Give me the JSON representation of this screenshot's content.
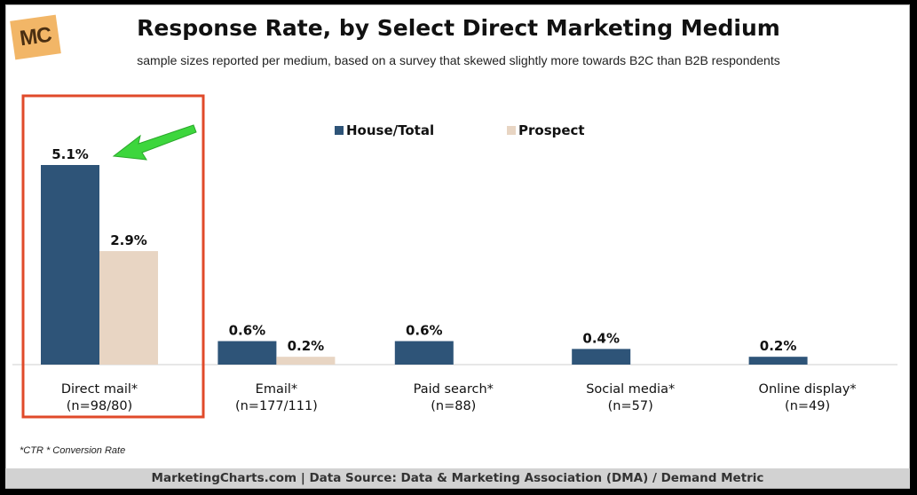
{
  "logo_text": "MC",
  "chart_data": {
    "type": "bar",
    "title": "Response Rate, by Select Direct Marketing Medium",
    "subtitle": "sample sizes reported per medium, based on a survey that skewed slightly more towards B2C than B2B respondents",
    "categories": [
      "Direct mail*",
      "Email*",
      "Paid search*",
      "Social media*",
      "Online display*"
    ],
    "sample_sizes": [
      "(n=98/80)",
      "(n=177/111)",
      "(n=88)",
      "(n=57)",
      "(n=49)"
    ],
    "series": [
      {
        "name": "House/Total",
        "color": "#2e5478",
        "values": [
          5.1,
          0.6,
          0.6,
          0.4,
          0.2
        ],
        "labels": [
          "5.1%",
          "0.6%",
          "0.6%",
          "0.4%",
          "0.2%"
        ]
      },
      {
        "name": "Prospect",
        "color": "#e8d5c3",
        "values": [
          2.9,
          0.2,
          null,
          null,
          null
        ],
        "labels": [
          "2.9%",
          "0.2%",
          "",
          "",
          ""
        ]
      }
    ],
    "ylim": [
      0,
      5.1
    ],
    "xlabel": "",
    "ylabel": "",
    "legend": "top-center",
    "highlight": {
      "category_index": 0,
      "color": "#e04a2a",
      "arrow_color": "#3dd63d"
    }
  },
  "footnote": "*CTR * Conversion Rate",
  "source": "MarketingCharts.com | Data Source: Data & Marketing Association (DMA) / Demand Metric"
}
